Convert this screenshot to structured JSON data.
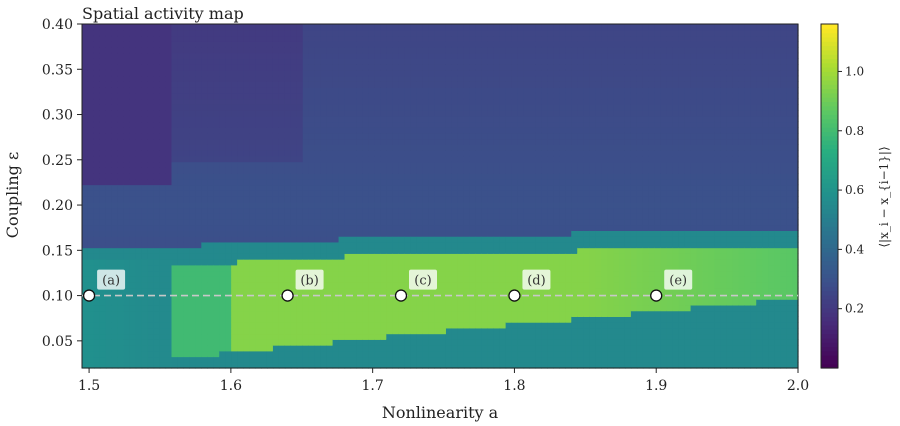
{
  "chart_data": {
    "type": "heatmap",
    "title": "Spatial activity map",
    "xlabel": "Nonlinearity a",
    "ylabel": "Coupling ε",
    "xlim": [
      1.495,
      2.0
    ],
    "ylim": [
      0.02,
      0.4
    ],
    "xticks": [
      "1.5",
      "1.6",
      "1.7",
      "1.8",
      "1.9",
      "2.0"
    ],
    "yticks": [
      "0.05",
      "0.10",
      "0.15",
      "0.20",
      "0.25",
      "0.30",
      "0.35",
      "0.40"
    ],
    "colorbar": {
      "label": "⟨|x_i − x_{i−1}|⟩",
      "range": [
        0.0,
        1.16
      ],
      "ticks": [
        "0.2",
        "0.4",
        "0.6",
        "0.8",
        "1.0"
      ],
      "colormap": "viridis"
    },
    "reference_line": {
      "y": 0.1,
      "style": "dashed"
    },
    "markers": [
      {
        "label": "(a)",
        "x": 1.5,
        "y": 0.1
      },
      {
        "label": "(b)",
        "x": 1.64,
        "y": 0.1
      },
      {
        "label": "(c)",
        "x": 1.72,
        "y": 0.1
      },
      {
        "label": "(d)",
        "x": 1.8,
        "y": 0.1
      },
      {
        "label": "(e)",
        "x": 1.9,
        "y": 0.1
      }
    ],
    "regions": [
      {
        "description": "upper region, low activity",
        "value_approx": 0.25
      },
      {
        "description": "upper boundary band",
        "value_approx": 0.45
      },
      {
        "description": "lower-right mid band",
        "value_approx": 0.6
      },
      {
        "description": "bright active band",
        "value_approx": 0.95
      },
      {
        "description": "bottom band",
        "value_approx": 0.55
      }
    ]
  }
}
